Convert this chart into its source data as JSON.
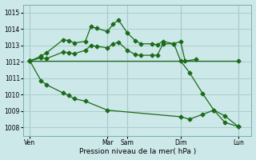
{
  "xlabel": "Pression niveau de la mer( hPa )",
  "bg_color": "#cde8e8",
  "grid_color": "#aacece",
  "line_color": "#1a6b1a",
  "ylim": [
    1007.5,
    1015.5
  ],
  "yticks": [
    1008,
    1009,
    1010,
    1011,
    1012,
    1013,
    1014,
    1015
  ],
  "x_tick_labels": [
    "Ven",
    "Mar",
    "Sam",
    "Dim",
    "Lun"
  ],
  "x_tick_positions": [
    0.0,
    3.5,
    4.4,
    6.8,
    9.4
  ],
  "vlines": [
    0.0,
    3.5,
    4.4,
    6.8,
    9.4
  ],
  "xlim": [
    -0.3,
    10.0
  ],
  "line1_x": [
    0.0,
    0.5,
    0.75,
    1.5,
    1.75,
    2.0,
    2.5,
    2.75,
    3.0,
    3.5,
    3.75,
    4.0,
    4.4,
    4.75,
    5.0,
    5.5,
    5.75,
    6.0,
    6.5,
    6.8,
    7.0,
    7.5
  ],
  "line1_y": [
    1012.05,
    1012.35,
    1012.55,
    1013.35,
    1013.3,
    1013.15,
    1013.25,
    1014.15,
    1014.05,
    1013.85,
    1014.3,
    1014.55,
    1013.75,
    1013.3,
    1013.1,
    1013.1,
    1013.05,
    1013.25,
    1013.1,
    1013.25,
    1012.05,
    1012.15
  ],
  "line2_x": [
    0.0,
    0.5,
    0.75,
    1.5,
    1.75,
    2.0,
    2.5,
    2.75,
    3.0,
    3.5,
    3.75,
    4.0,
    4.4,
    4.75,
    5.0,
    5.5,
    5.75,
    6.0,
    6.5,
    6.8,
    7.2,
    7.8,
    8.3,
    8.8,
    9.4
  ],
  "line2_y": [
    1012.05,
    1012.25,
    1012.2,
    1012.6,
    1012.55,
    1012.5,
    1012.7,
    1013.0,
    1012.95,
    1012.85,
    1013.1,
    1013.2,
    1012.7,
    1012.45,
    1012.4,
    1012.4,
    1012.4,
    1013.1,
    1013.1,
    1012.05,
    1011.35,
    1010.05,
    1009.05,
    1008.7,
    1008.05
  ],
  "line3_x": [
    0.0,
    9.4
  ],
  "line3_y": [
    1012.05,
    1012.05
  ],
  "line4_x": [
    0.0,
    0.5,
    0.75,
    1.5,
    1.75,
    2.0,
    2.5,
    3.5,
    6.8,
    7.2,
    7.8,
    8.3,
    8.8,
    9.4
  ],
  "line4_y": [
    1012.05,
    1010.85,
    1010.6,
    1010.1,
    1009.95,
    1009.75,
    1009.6,
    1009.05,
    1008.65,
    1008.5,
    1008.8,
    1009.05,
    1008.3,
    1008.05
  ]
}
